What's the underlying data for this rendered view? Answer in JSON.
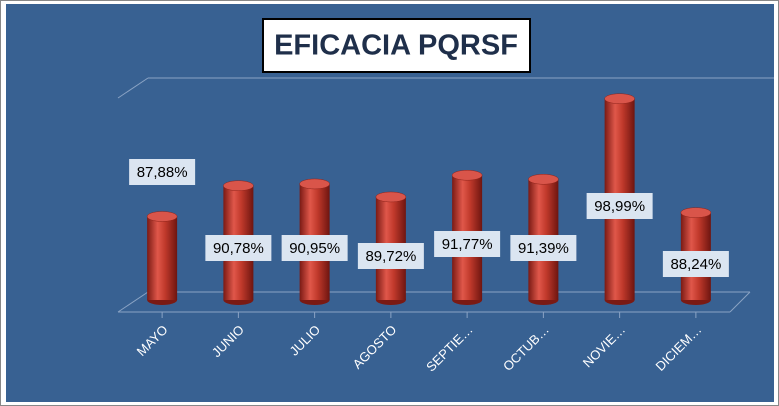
{
  "chart_data": {
    "type": "bar",
    "title": "EFICACIA PQRSF",
    "categories": [
      "MAYO",
      "JUNIO",
      "JULIO",
      "AGOSTO",
      "SEPTIE…",
      "OCTUB…",
      "NOVIE…",
      "DICIEM…"
    ],
    "values": [
      87.88,
      90.78,
      90.95,
      89.72,
      91.77,
      91.39,
      98.99,
      88.24
    ],
    "value_labels": [
      "87,88%",
      "90,78%",
      "90,95%",
      "89,72%",
      "91,77%",
      "91,39%",
      "98,99%",
      "88,24%"
    ],
    "color": "#c0392b",
    "ylim": [
      80,
      100
    ]
  }
}
